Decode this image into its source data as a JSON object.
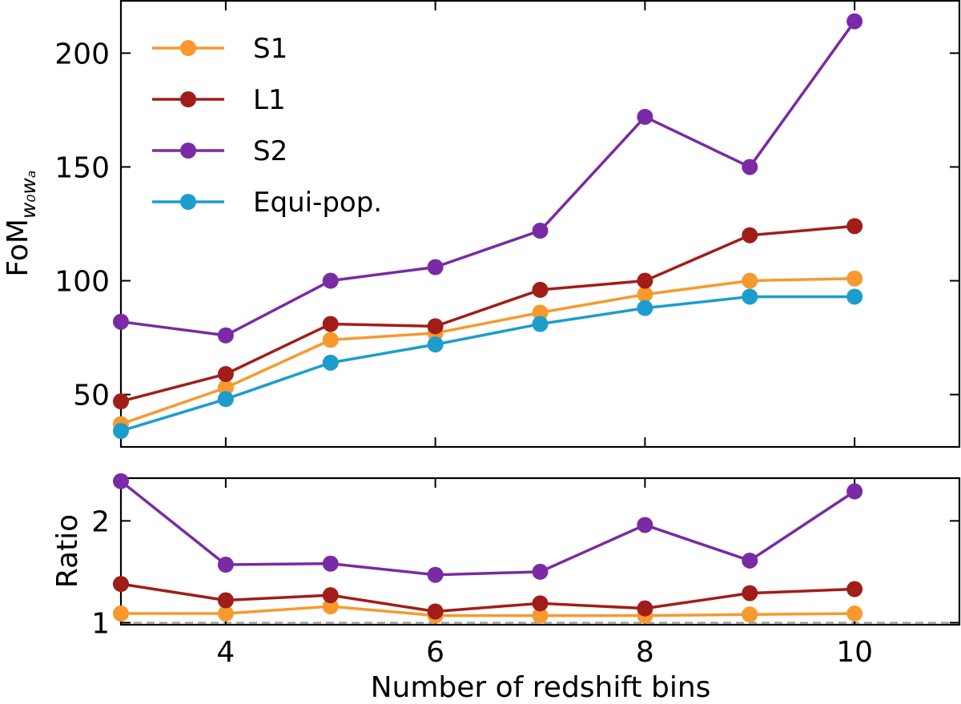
{
  "chart_data": [
    {
      "type": "line",
      "panel": "top",
      "ylabel": "FoM",
      "ylabel_subscript": "w₀wₐ",
      "xlim": [
        3,
        11
      ],
      "ylim": [
        27,
        223
      ],
      "x": [
        3,
        4,
        5,
        6,
        7,
        8,
        9,
        10
      ],
      "xticks": [
        4,
        6,
        8,
        10
      ],
      "xtick_labels": [
        "4",
        "6",
        "8",
        "10"
      ],
      "yticks": [
        50,
        100,
        150,
        200
      ],
      "ytick_labels": [
        "50",
        "100",
        "150",
        "200"
      ],
      "legend_position": "top-left",
      "series": [
        {
          "name": "S1",
          "color": "#F7992E",
          "values": [
            37,
            53,
            74,
            77,
            86,
            94,
            100,
            101
          ]
        },
        {
          "name": "L1",
          "color": "#A11D1A",
          "values": [
            47,
            59,
            81,
            80,
            96,
            100,
            120,
            124
          ]
        },
        {
          "name": "S2",
          "color": "#7A2AA4",
          "values": [
            82,
            76,
            100,
            106,
            122,
            172,
            150,
            214
          ]
        },
        {
          "name": "Equi-pop.",
          "color": "#1C9DCE",
          "values": [
            34,
            48,
            64,
            72,
            81,
            88,
            93,
            93
          ]
        }
      ]
    },
    {
      "type": "line",
      "panel": "bottom",
      "ylabel": "Ratio",
      "xlabel": "Number of redshift bins",
      "xlim": [
        3,
        11
      ],
      "ylim": [
        0.98,
        2.42
      ],
      "x": [
        3,
        4,
        5,
        6,
        7,
        8,
        9,
        10
      ],
      "xticks": [
        4,
        6,
        8,
        10
      ],
      "xtick_labels": [
        "4",
        "6",
        "8",
        "10"
      ],
      "yticks": [
        1,
        2
      ],
      "ytick_labels": [
        "1",
        "2"
      ],
      "reference_line": 1,
      "series": [
        {
          "name": "S1",
          "color": "#F7992E",
          "values": [
            1.09,
            1.09,
            1.16,
            1.07,
            1.07,
            1.07,
            1.08,
            1.09
          ]
        },
        {
          "name": "L1",
          "color": "#A11D1A",
          "values": [
            1.38,
            1.22,
            1.27,
            1.11,
            1.19,
            1.14,
            1.29,
            1.33
          ]
        },
        {
          "name": "S2",
          "color": "#7A2AA4",
          "values": [
            2.39,
            1.57,
            1.58,
            1.47,
            1.5,
            1.96,
            1.61,
            2.29
          ]
        }
      ]
    }
  ]
}
